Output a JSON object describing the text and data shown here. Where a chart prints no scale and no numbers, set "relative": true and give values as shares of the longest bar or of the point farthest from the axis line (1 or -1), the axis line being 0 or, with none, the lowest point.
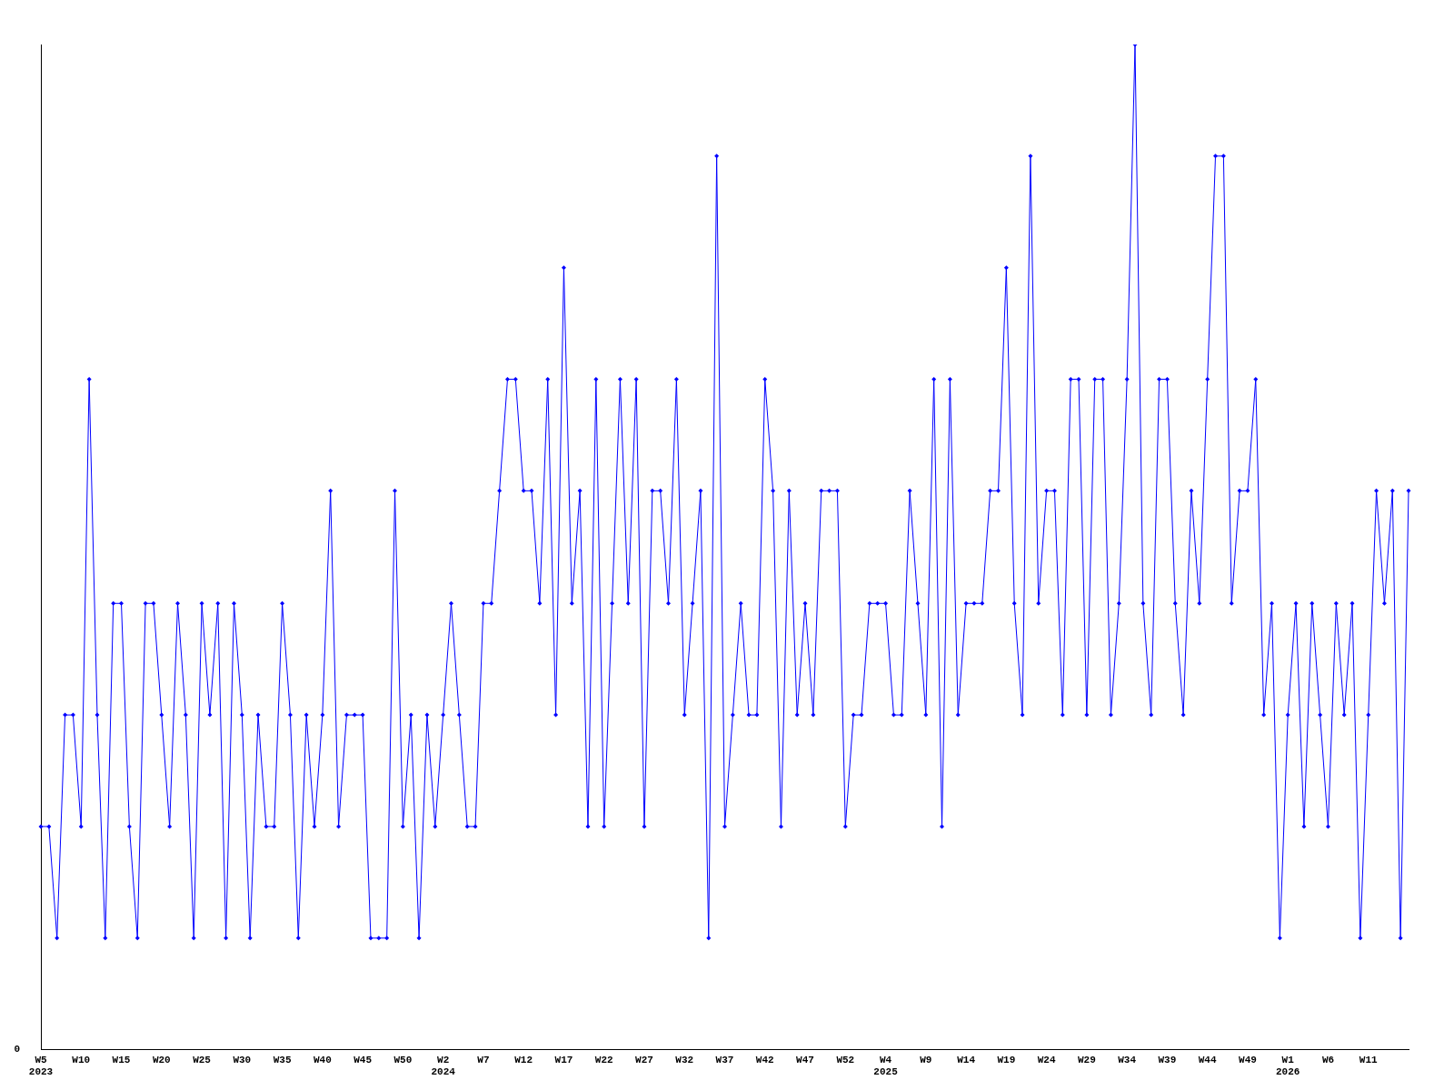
{
  "chart_data": {
    "type": "line",
    "relative": true,
    "marker": "diamond",
    "grid": false,
    "legend": false,
    "annotations": [
      "0"
    ],
    "categories": [
      "W5\n2023",
      null,
      null,
      null,
      null,
      "W10",
      null,
      null,
      null,
      null,
      "W15",
      null,
      null,
      null,
      null,
      "W20",
      null,
      null,
      null,
      null,
      "W25",
      null,
      null,
      null,
      null,
      "W30",
      null,
      null,
      null,
      null,
      "W35",
      null,
      null,
      null,
      null,
      "W40",
      null,
      null,
      null,
      null,
      "W45",
      null,
      null,
      null,
      null,
      "W50",
      null,
      null,
      null,
      null,
      "W2\n2024",
      null,
      null,
      null,
      null,
      "W7",
      null,
      null,
      null,
      null,
      "W12",
      null,
      null,
      null,
      null,
      "W17",
      null,
      null,
      null,
      null,
      "W22",
      null,
      null,
      null,
      null,
      "W27",
      null,
      null,
      null,
      null,
      "W32",
      null,
      null,
      null,
      null,
      "W37",
      null,
      null,
      null,
      null,
      "W42",
      null,
      null,
      null,
      null,
      "W47",
      null,
      null,
      null,
      null,
      "W52",
      null,
      null,
      null,
      null,
      "W4\n2025",
      null,
      null,
      null,
      null,
      "W9",
      null,
      null,
      null,
      null,
      "W14",
      null,
      null,
      null,
      null,
      "W19",
      null,
      null,
      null,
      null,
      "W24",
      null,
      null,
      null,
      null,
      "W29",
      null,
      null,
      null,
      null,
      "W34",
      null,
      null,
      null,
      null,
      "W39",
      null,
      null,
      null,
      null,
      "W44",
      null,
      null,
      null,
      null,
      "W49",
      null,
      null,
      null,
      null,
      "W1\n2026",
      null,
      null,
      null,
      null,
      "W6",
      null,
      null,
      null,
      null,
      "W11",
      null,
      null,
      null,
      null,
      null
    ],
    "series": [
      {
        "color": "#0000ff",
        "values": [
          0.222,
          0.222,
          0.111,
          0.333,
          0.333,
          0.222,
          0.667,
          0.333,
          0.111,
          0.444,
          0.444,
          0.222,
          0.111,
          0.444,
          0.444,
          0.333,
          0.222,
          0.444,
          0.333,
          0.111,
          0.444,
          0.333,
          0.444,
          0.111,
          0.444,
          0.333,
          0.111,
          0.333,
          0.222,
          0.222,
          0.444,
          0.333,
          0.111,
          0.333,
          0.222,
          0.333,
          0.556,
          0.222,
          0.333,
          0.333,
          0.333,
          0.111,
          0.111,
          0.111,
          0.556,
          0.222,
          0.333,
          0.111,
          0.333,
          0.222,
          0.333,
          0.444,
          0.333,
          0.222,
          0.222,
          0.444,
          0.444,
          0.556,
          0.667,
          0.667,
          0.556,
          0.556,
          0.444,
          0.667,
          0.333,
          0.778,
          0.444,
          0.556,
          0.222,
          0.667,
          0.222,
          0.444,
          0.667,
          0.444,
          0.667,
          0.222,
          0.556,
          0.556,
          0.444,
          0.667,
          0.333,
          0.444,
          0.556,
          0.111,
          0.889,
          0.222,
          0.333,
          0.444,
          0.333,
          0.333,
          0.667,
          0.556,
          0.222,
          0.556,
          0.333,
          0.444,
          0.333,
          0.556,
          0.556,
          0.556,
          0.222,
          0.333,
          0.333,
          0.444,
          0.444,
          0.444,
          0.333,
          0.333,
          0.556,
          0.444,
          0.333,
          0.667,
          0.222,
          0.667,
          0.333,
          0.444,
          0.444,
          0.444,
          0.556,
          0.556,
          0.778,
          0.444,
          0.333,
          0.889,
          0.444,
          0.556,
          0.556,
          0.333,
          0.667,
          0.667,
          0.333,
          0.667,
          0.667,
          0.333,
          0.444,
          0.667,
          1,
          0.444,
          0.333,
          0.667,
          0.667,
          0.444,
          0.333,
          0.556,
          0.444,
          0.667,
          0.889,
          0.889,
          0.444,
          0.556,
          0.556,
          0.667,
          0.333,
          0.444,
          0.111,
          0.333,
          0.444,
          0.222,
          0.444,
          0.333,
          0.222,
          0.444,
          0.333,
          0.444,
          0.111,
          0.333,
          0.556,
          0.444,
          0.556,
          0.111,
          0.556
        ]
      }
    ]
  }
}
